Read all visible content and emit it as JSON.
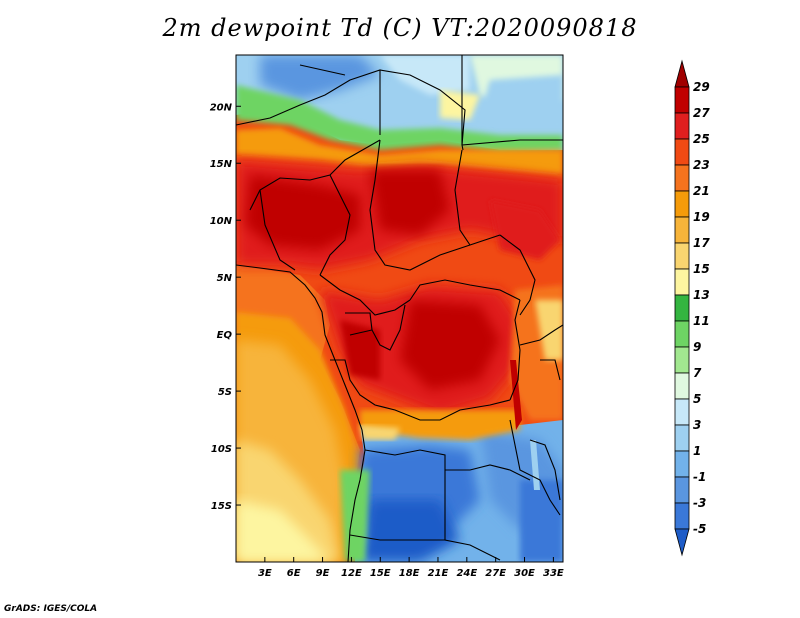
{
  "title": "2m dewpoint Td (C) VT:2020090818",
  "footer": "GrADS: IGES/COLA",
  "map": {
    "lon_range": [
      0,
      34
    ],
    "lat_range": [
      -20,
      24.5
    ],
    "x_ticks": [
      {
        "lon": 3,
        "label": "3E"
      },
      {
        "lon": 6,
        "label": "6E"
      },
      {
        "lon": 9,
        "label": "9E"
      },
      {
        "lon": 12,
        "label": "12E"
      },
      {
        "lon": 15,
        "label": "15E"
      },
      {
        "lon": 18,
        "label": "18E"
      },
      {
        "lon": 21,
        "label": "21E"
      },
      {
        "lon": 24,
        "label": "24E"
      },
      {
        "lon": 27,
        "label": "27E"
      },
      {
        "lon": 30,
        "label": "30E"
      },
      {
        "lon": 33,
        "label": "33E"
      }
    ],
    "y_ticks": [
      {
        "lat": 20,
        "label": "20N"
      },
      {
        "lat": 15,
        "label": "15N"
      },
      {
        "lat": 10,
        "label": "10N"
      },
      {
        "lat": 5,
        "label": "5N"
      },
      {
        "lat": 0,
        "label": "EQ"
      },
      {
        "lat": -5,
        "label": "5S"
      },
      {
        "lat": -10,
        "label": "10S"
      },
      {
        "lat": -15,
        "label": "15S"
      }
    ]
  },
  "colorbar": {
    "labels": [
      "29",
      "27",
      "25",
      "23",
      "21",
      "19",
      "17",
      "15",
      "13",
      "11",
      "9",
      "7",
      "5",
      "3",
      "1",
      "-1",
      "-3",
      "-5"
    ],
    "colors": [
      "#a00000",
      "#c00000",
      "#e01f1f",
      "#f04a14",
      "#f5731e",
      "#f59b0a",
      "#f7b43a",
      "#f9d570",
      "#fdf5a0",
      "#34b540",
      "#6ed464",
      "#a2e890",
      "#e0f8e0",
      "#c7e8f8",
      "#9ed0f0",
      "#72b2ea",
      "#5a96e0",
      "#3a78d8",
      "#1e5cc8"
    ]
  },
  "colors": {
    "ocean_shallow": "#f9d570",
    "ocean_mid": "#f7b43a",
    "ocean_deep": "#f59b0a",
    "humid_core": "#e01f1f",
    "dry_blue": "#3a78d8",
    "boundary": "#000000"
  },
  "icons": [
    "up-arrow-icon",
    "down-arrow-icon"
  ]
}
